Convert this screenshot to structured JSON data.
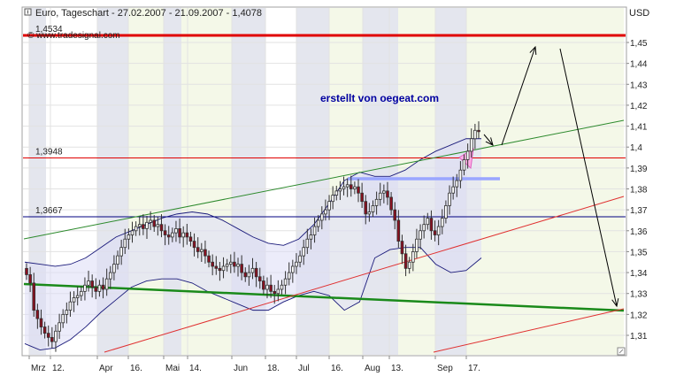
{
  "chart_data": {
    "type": "candlestick",
    "title": "Euro, Tageschart - 27.02.2007 - 21.09.2007 - 1,4078",
    "watermark": "© www.tradesignal.com",
    "annotation": "erstellt von oegeat.com",
    "currency_label": "USD",
    "ylim": [
      1.3,
      1.46
    ],
    "y_ticks": [
      "1,45",
      "1,44",
      "1,43",
      "1,42",
      "1,41",
      "1,4",
      "1,39",
      "1,38",
      "1,37",
      "1,36",
      "1,35",
      "1,34",
      "1,33",
      "1,32",
      "1,31"
    ],
    "y_tick_values": [
      1.45,
      1.44,
      1.43,
      1.42,
      1.41,
      1.4,
      1.39,
      1.38,
      1.37,
      1.36,
      1.35,
      1.34,
      1.33,
      1.32,
      1.31
    ],
    "x_ticks": [
      "Mrz",
      "12.",
      "Apr",
      "16.",
      "Mai",
      "14.",
      "Jun",
      "18.",
      "Jul",
      "16.",
      "Aug",
      "13.",
      "Sep",
      "17."
    ],
    "levels": [
      {
        "label": "1,4534",
        "value": 1.4534,
        "color": "#e00000",
        "weight": "thick"
      },
      {
        "label": "1,3948",
        "value": 1.3948,
        "color": "#e00000",
        "weight": "thin"
      },
      {
        "label": "1,3667",
        "value": 1.3667,
        "color": "#000080",
        "weight": "thin"
      }
    ],
    "closes": [
      1.339,
      1.335,
      1.322,
      1.318,
      1.314,
      1.311,
      1.309,
      1.307,
      1.312,
      1.316,
      1.32,
      1.322,
      1.326,
      1.328,
      1.329,
      1.331,
      1.334,
      1.336,
      1.333,
      1.331,
      1.334,
      1.332,
      1.337,
      1.34,
      1.344,
      1.348,
      1.352,
      1.356,
      1.358,
      1.36,
      1.362,
      1.363,
      1.361,
      1.364,
      1.365,
      1.362,
      1.363,
      1.36,
      1.358,
      1.357,
      1.359,
      1.361,
      1.357,
      1.359,
      1.357,
      1.355,
      1.352,
      1.35,
      1.351,
      1.348,
      1.345,
      1.343,
      1.342,
      1.341,
      1.343,
      1.344,
      1.345,
      1.343,
      1.344,
      1.34,
      1.338,
      1.34,
      1.342,
      1.338,
      1.336,
      1.332,
      1.334,
      1.331,
      1.33,
      1.332,
      1.334,
      1.337,
      1.34,
      1.343,
      1.345,
      1.348,
      1.352,
      1.356,
      1.358,
      1.362,
      1.365,
      1.368,
      1.37,
      1.374,
      1.377,
      1.379,
      1.38,
      1.381,
      1.382,
      1.38,
      1.381,
      1.378,
      1.374,
      1.368,
      1.369,
      1.372,
      1.375,
      1.378,
      1.379,
      1.376,
      1.37,
      1.365,
      1.355,
      1.349,
      1.342,
      1.345,
      1.35,
      1.356,
      1.36,
      1.363,
      1.366,
      1.36,
      1.358,
      1.362,
      1.366,
      1.372,
      1.378,
      1.381,
      1.384,
      1.389,
      1.394,
      1.398,
      1.404,
      1.408,
      1.4078
    ],
    "bollinger_upper": [
      1.345,
      1.344,
      1.343,
      1.344,
      1.347,
      1.352,
      1.357,
      1.36,
      1.363,
      1.366,
      1.368,
      1.369,
      1.368,
      1.365,
      1.361,
      1.357,
      1.354,
      1.353,
      1.356,
      1.363,
      1.373,
      1.384,
      1.388,
      1.386,
      1.386,
      1.389,
      1.394,
      1.398,
      1.401,
      1.404,
      1.404
    ],
    "bollinger_lower": [
      1.306,
      1.303,
      1.304,
      1.308,
      1.314,
      1.321,
      1.327,
      1.333,
      1.336,
      1.337,
      1.337,
      1.335,
      1.331,
      1.328,
      1.325,
      1.322,
      1.322,
      1.326,
      1.329,
      1.331,
      1.329,
      1.322,
      1.326,
      1.347,
      1.351,
      1.352,
      1.352,
      1.344,
      1.34,
      1.341,
      1.347
    ],
    "trendlines": [
      {
        "name": "green-channel-upper",
        "color": "#2d8a2d"
      },
      {
        "name": "green-support",
        "color": "#1a8a1a"
      },
      {
        "name": "red-channel-upper",
        "color": "#e03030"
      },
      {
        "name": "red-channel-lower",
        "color": "#e03030"
      },
      {
        "name": "resistance-zone",
        "color": "#9aa6ff"
      }
    ],
    "grid": true,
    "legend": "none"
  }
}
